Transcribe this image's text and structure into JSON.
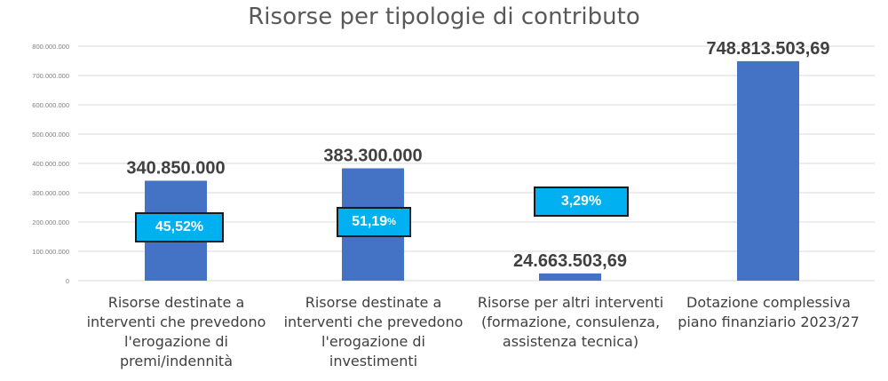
{
  "chart_data": {
    "type": "bar",
    "title": "Risorse per tipologie di contributo",
    "categories": [
      "Risorse destinate a interventi che prevedono l'erogazione di premi/indennità",
      "Risorse destinate a interventi che prevedono l'erogazione di investimenti",
      "Risorse per altri interventi (formazione, consulenza, assistenza tecnica)",
      "Dotazione complessiva piano finanziario 2023/27"
    ],
    "category_lines": [
      [
        "Risorse destinate a",
        "interventi che prevedono",
        "l'erogazione di",
        "premi/indennità"
      ],
      [
        "Risorse destinate a",
        "interventi che prevedono",
        "l'erogazione di",
        "investimenti"
      ],
      [
        "Risorse per altri interventi",
        "(formazione, consulenza,",
        "assistenza tecnica)"
      ],
      [
        "Dotazione complessiva",
        "piano finanziario 2023/27"
      ]
    ],
    "values": [
      340850000,
      383300000,
      24663503.69,
      748813503.69
    ],
    "data_labels": [
      "340.850.000",
      "383.300.000",
      "24.663.503,69",
      "748.813.503,69"
    ],
    "percent_labels": [
      "45,52%",
      "51,19",
      "3,29%",
      ""
    ],
    "percent_suffix_small": [
      "",
      "%",
      "",
      ""
    ],
    "ylim": [
      0,
      800000000
    ],
    "yticks": [
      0,
      100000000,
      200000000,
      300000000,
      400000000,
      500000000,
      600000000,
      700000000,
      800000000
    ],
    "ytick_labels": [
      "0",
      "100.000.000",
      "200.000.000",
      "300.000.000",
      "400.000.000",
      "500.000.000",
      "600.000.000",
      "700.000.000",
      "800.000.000"
    ],
    "grid": true,
    "legend": "none",
    "bar_color": "#4472c4",
    "grid_color": "#d9d9d9",
    "percent_box_color": "#00b0f0"
  }
}
